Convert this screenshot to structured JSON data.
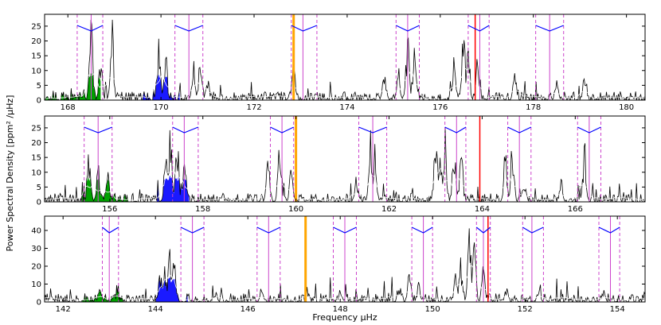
{
  "chart_data": {
    "type": "line",
    "xlabel": "Frequency μHz",
    "ylabel": "Power Spectral Density [ppm² /μHz]",
    "panels": [
      {
        "xlim": [
          167.5,
          180.4
        ],
        "ylim": [
          0,
          29
        ],
        "xticks": [
          168,
          170,
          172,
          174,
          176,
          178,
          180
        ],
        "yticks": [
          0,
          5,
          10,
          15,
          20,
          25
        ],
        "peaks": [
          {
            "x": 168.5,
            "y": 29
          },
          {
            "x": 168.95,
            "y": 29
          },
          {
            "x": 168.7,
            "y": 16
          },
          {
            "x": 169.95,
            "y": 22
          },
          {
            "x": 170.1,
            "y": 18
          },
          {
            "x": 170.7,
            "y": 16
          },
          {
            "x": 170.85,
            "y": 20
          },
          {
            "x": 171.0,
            "y": 10
          },
          {
            "x": 172.85,
            "y": 15
          },
          {
            "x": 174.8,
            "y": 12
          },
          {
            "x": 175.3,
            "y": 24
          },
          {
            "x": 175.45,
            "y": 20
          },
          {
            "x": 175.1,
            "y": 13
          },
          {
            "x": 176.3,
            "y": 16
          },
          {
            "x": 176.5,
            "y": 28
          },
          {
            "x": 176.6,
            "y": 22
          },
          {
            "x": 176.8,
            "y": 18
          },
          {
            "x": 177.6,
            "y": 10
          },
          {
            "x": 179.1,
            "y": 9
          },
          {
            "x": 178.5,
            "y": 8
          }
        ],
        "green_fill": [
          167.5,
          168.7
        ],
        "blue_fill": [
          169.6,
          170.4
        ],
        "orange_line": 172.85,
        "red_line": 176.75,
        "markers": [
          {
            "center": 168.5,
            "left": 168.2,
            "right": 168.75
          },
          {
            "center": 170.6,
            "left": 170.3,
            "right": 170.9
          },
          {
            "center": 173.05,
            "left": 172.8,
            "right": 173.35
          },
          {
            "center": 175.3,
            "left": 175.05,
            "right": 175.55
          },
          {
            "center": 176.85,
            "left": 176.6,
            "right": 177.05
          },
          {
            "center": 178.35,
            "left": 178.05,
            "right": 178.65
          }
        ]
      },
      {
        "xlim": [
          154.6,
          167.5
        ],
        "ylim": [
          0,
          29
        ],
        "xticks": [
          156,
          158,
          160,
          162,
          164,
          166
        ],
        "yticks": [
          0,
          5,
          10,
          15,
          20,
          25
        ],
        "peaks": [
          {
            "x": 155.55,
            "y": 20
          },
          {
            "x": 155.75,
            "y": 13
          },
          {
            "x": 155.95,
            "y": 12
          },
          {
            "x": 157.3,
            "y": 29
          },
          {
            "x": 157.45,
            "y": 25
          },
          {
            "x": 157.6,
            "y": 17
          },
          {
            "x": 157.2,
            "y": 19
          },
          {
            "x": 159.4,
            "y": 16
          },
          {
            "x": 159.65,
            "y": 27
          },
          {
            "x": 159.9,
            "y": 13
          },
          {
            "x": 161.6,
            "y": 29
          },
          {
            "x": 161.7,
            "y": 22
          },
          {
            "x": 161.3,
            "y": 9
          },
          {
            "x": 163.0,
            "y": 29
          },
          {
            "x": 163.2,
            "y": 26
          },
          {
            "x": 163.4,
            "y": 24
          },
          {
            "x": 163.55,
            "y": 20
          },
          {
            "x": 163.1,
            "y": 22
          },
          {
            "x": 164.5,
            "y": 20
          },
          {
            "x": 164.65,
            "y": 22
          },
          {
            "x": 164.9,
            "y": 10
          },
          {
            "x": 166.2,
            "y": 21
          },
          {
            "x": 165.7,
            "y": 8
          }
        ],
        "green_fill": [
          155.4,
          156.4
        ],
        "blue_fill": [
          157.0,
          157.7
        ],
        "orange_line": 160.0,
        "red_line": 163.95,
        "markers": [
          {
            "center": 155.75,
            "left": 155.45,
            "right": 156.05
          },
          {
            "center": 157.6,
            "left": 157.35,
            "right": 157.9
          },
          {
            "center": 159.7,
            "left": 159.45,
            "right": 159.95
          },
          {
            "center": 161.65,
            "left": 161.35,
            "right": 161.95
          },
          {
            "center": 163.45,
            "left": 163.2,
            "right": 163.65
          },
          {
            "center": 164.8,
            "left": 164.55,
            "right": 165.05
          },
          {
            "center": 166.3,
            "left": 166.05,
            "right": 166.55
          }
        ]
      },
      {
        "xlim": [
          141.6,
          154.6
        ],
        "ylim": [
          0,
          48
        ],
        "xticks": [
          142,
          144,
          146,
          148,
          150,
          152,
          154
        ],
        "yticks": [
          0,
          10,
          20,
          30,
          40
        ],
        "peaks": [
          {
            "x": 142.8,
            "y": 8
          },
          {
            "x": 143.1,
            "y": 6
          },
          {
            "x": 144.1,
            "y": 18
          },
          {
            "x": 144.3,
            "y": 33
          },
          {
            "x": 144.4,
            "y": 26
          },
          {
            "x": 144.2,
            "y": 21
          },
          {
            "x": 145.3,
            "y": 6
          },
          {
            "x": 146.3,
            "y": 9
          },
          {
            "x": 147.3,
            "y": 6
          },
          {
            "x": 148.0,
            "y": 7
          },
          {
            "x": 149.3,
            "y": 10
          },
          {
            "x": 149.5,
            "y": 20
          },
          {
            "x": 149.7,
            "y": 13
          },
          {
            "x": 150.6,
            "y": 28
          },
          {
            "x": 150.8,
            "y": 48
          },
          {
            "x": 150.9,
            "y": 40
          },
          {
            "x": 151.1,
            "y": 25
          },
          {
            "x": 150.5,
            "y": 22
          },
          {
            "x": 151.6,
            "y": 8
          },
          {
            "x": 152.3,
            "y": 9
          },
          {
            "x": 153.7,
            "y": 7
          }
        ],
        "green_fill": [
          142.4,
          143.3
        ],
        "blue_fill": [
          144.0,
          144.7
        ],
        "orange_line": 147.25,
        "red_line": 151.2,
        "markers": [
          {
            "center": 143.0,
            "left": 142.85,
            "right": 143.2
          },
          {
            "center": 144.8,
            "left": 144.55,
            "right": 145.05
          },
          {
            "center": 146.45,
            "left": 146.2,
            "right": 146.7
          },
          {
            "center": 148.1,
            "left": 147.85,
            "right": 148.35
          },
          {
            "center": 149.8,
            "left": 149.55,
            "right": 150.0
          },
          {
            "center": 151.1,
            "left": 150.95,
            "right": 151.25
          },
          {
            "center": 152.15,
            "left": 151.95,
            "right": 152.4
          },
          {
            "center": 153.85,
            "left": 153.6,
            "right": 154.05
          }
        ]
      }
    ]
  }
}
